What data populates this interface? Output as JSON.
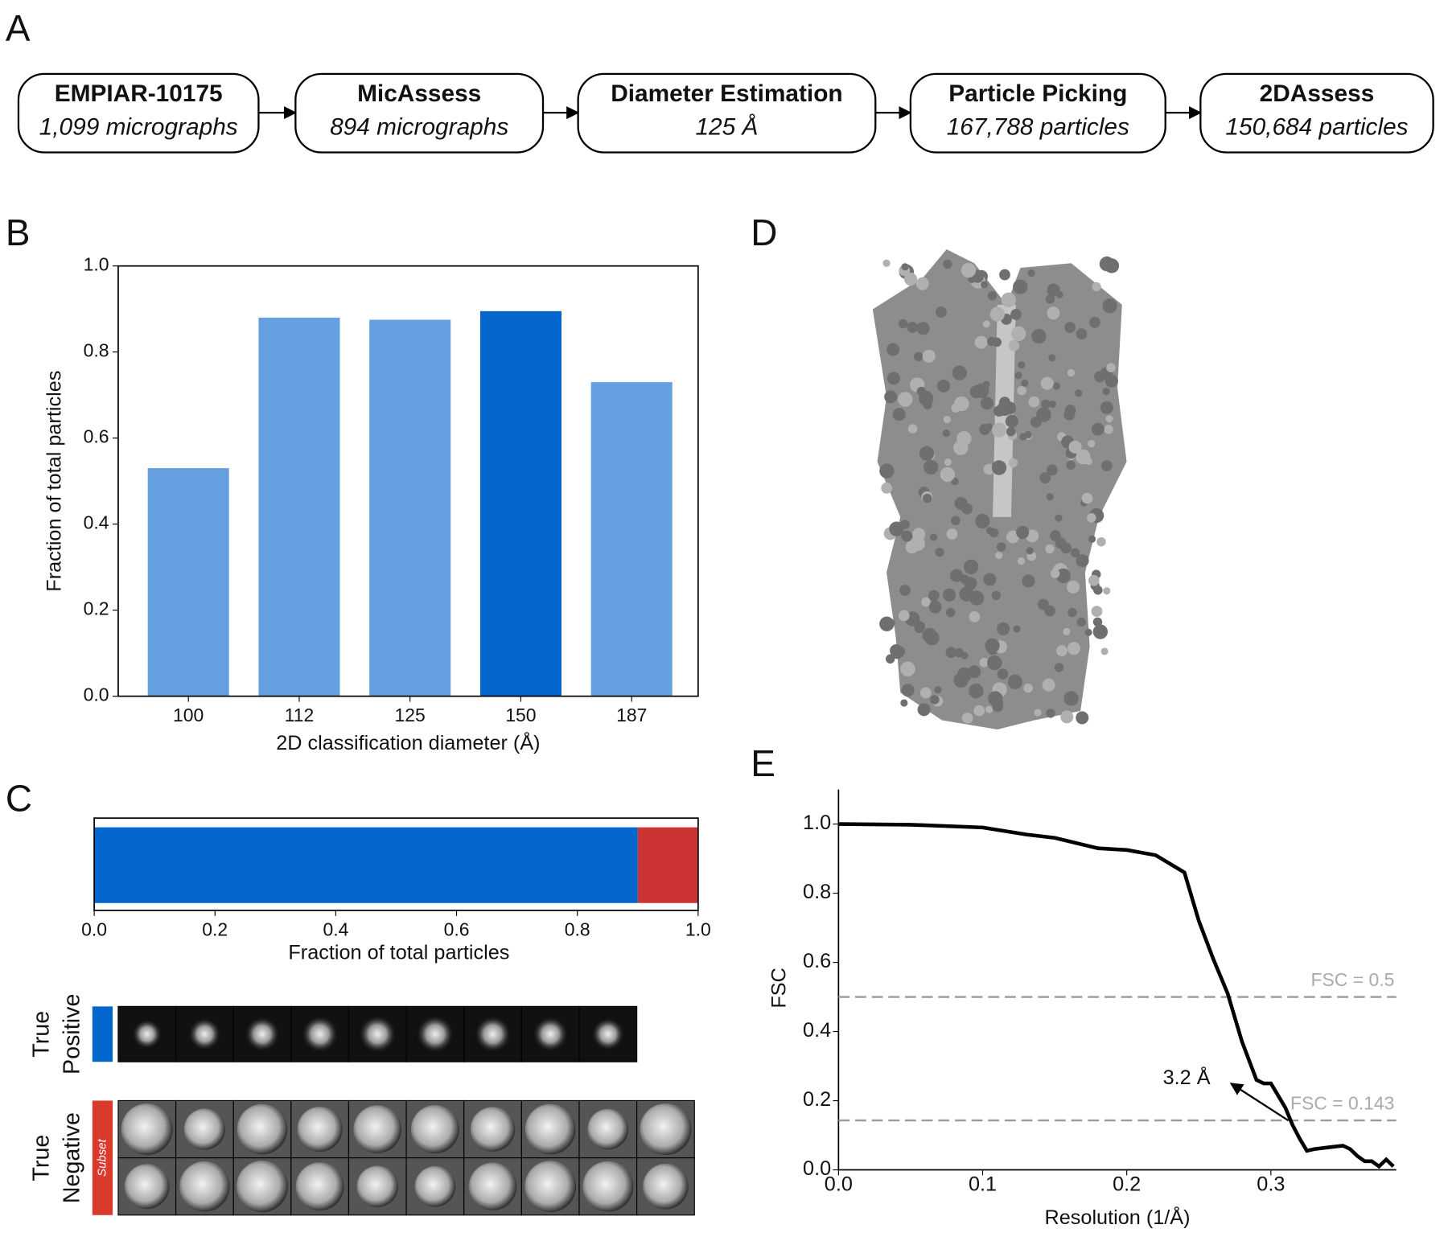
{
  "panel_labels": [
    "A",
    "B",
    "C",
    "D",
    "E"
  ],
  "pipeline": [
    {
      "title": "EMPIAR-10175",
      "detail": "1,099 micrographs"
    },
    {
      "title": "MicAssess",
      "detail": "894 micrographs"
    },
    {
      "title": "Diameter Estimation",
      "detail": "125 Å"
    },
    {
      "title": "Particle Picking",
      "detail": "167,788 particles"
    },
    {
      "title": "2DAssess",
      "detail": "150,684 particles"
    }
  ],
  "panel_c_rows": [
    {
      "lines": [
        "True",
        "Positive"
      ],
      "color": "#0366cc"
    },
    {
      "lines": [
        "True",
        "Negative"
      ],
      "tag": "Subset",
      "color": "#d93a2b"
    }
  ],
  "chart_data": [
    {
      "type": "bar",
      "xlabel": "2D classification diameter (Å)",
      "ylabel": "Fraction of total particles",
      "categories": [
        "100",
        "112",
        "125",
        "150",
        "187"
      ],
      "values": [
        0.53,
        0.88,
        0.875,
        0.895,
        0.73
      ],
      "colors": [
        "#64a0e0",
        "#64a0e0",
        "#64a0e0",
        "#0366cc",
        "#64a0e0"
      ],
      "ylim": [
        0,
        1
      ],
      "yticks": [
        {
          "value": 0,
          "label": "0.0"
        },
        0.2,
        0.4,
        0.6,
        0.8,
        {
          "value": 1,
          "label": "1.0"
        }
      ]
    },
    {
      "type": "hstack",
      "xlabel": "Fraction of total particles",
      "series": [
        {
          "color": "#0366cc",
          "values": [
            0.9
          ]
        },
        {
          "color": "#cc3333",
          "values": [
            0.1
          ]
        }
      ],
      "xlim": [
        0,
        1
      ],
      "xticks": [
        {
          "value": 0,
          "label": "0.0"
        },
        0.2,
        0.4,
        0.6,
        0.8,
        {
          "value": 1,
          "label": "1.0"
        }
      ]
    },
    {
      "type": "line",
      "xlabel": "Resolution (1/Å)",
      "ylabel": "FSC",
      "color": "#000000",
      "x": [
        0,
        0.05,
        0.1,
        0.13,
        0.15,
        0.18,
        0.2,
        0.22,
        0.23,
        0.24,
        0.25,
        0.26,
        0.27,
        0.28,
        0.29,
        0.295,
        0.3,
        0.31,
        0.315,
        0.32,
        0.325,
        0.33,
        0.34,
        0.35,
        0.355,
        0.36,
        0.365,
        0.37,
        0.375,
        0.38,
        0.385
      ],
      "values": [
        1.0,
        0.998,
        0.99,
        0.97,
        0.96,
        0.93,
        0.925,
        0.91,
        0.885,
        0.86,
        0.72,
        0.61,
        0.51,
        0.37,
        0.26,
        0.25,
        0.25,
        0.18,
        0.13,
        0.09,
        0.055,
        0.06,
        0.065,
        0.07,
        0.06,
        0.04,
        0.025,
        0.025,
        0.01,
        0.03,
        0.01
      ],
      "xlim": [
        0,
        0.387
      ],
      "xticks": [
        {
          "value": 0,
          "label": "0.0"
        },
        0.1,
        0.2,
        0.3
      ],
      "ylim": [
        0,
        1.1
      ],
      "yticks": [
        {
          "value": 0,
          "label": "0.0"
        },
        0.2,
        0.4,
        0.6,
        0.8,
        {
          "value": 1,
          "label": "1.0"
        }
      ],
      "hlines": [
        {
          "value": 0.5,
          "label": "FSC = 0.5"
        },
        {
          "value": 0.143,
          "label": "FSC = 0.143"
        }
      ],
      "annotation": {
        "text": "3.2 Å",
        "x": 0.312
      }
    }
  ]
}
